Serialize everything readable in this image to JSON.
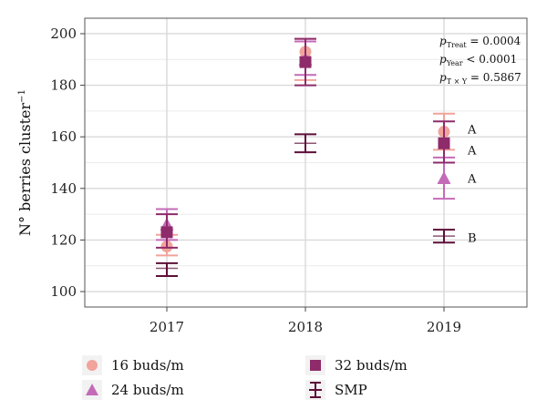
{
  "chart_data": {
    "type": "scatter",
    "ylabel": "N° berries cluster",
    "ylabel_superscript": "−1",
    "xlabel": "",
    "categories": [
      "2017",
      "2018",
      "2019"
    ],
    "ylim": [
      94,
      206
    ],
    "yticks": [
      100,
      120,
      140,
      160,
      180,
      200
    ],
    "grid": true,
    "legend_position": "bottom",
    "series": [
      {
        "name": "16 buds/m",
        "marker": "circle",
        "color": "#f0a49a",
        "values": [
          117.5,
          193,
          162
        ],
        "err_low": [
          114,
          182,
          155
        ],
        "err_high": [
          122,
          198,
          169
        ]
      },
      {
        "name": "24 buds/m",
        "marker": "triangle",
        "color": "#c46bb8",
        "values": [
          126,
          190,
          144
        ],
        "err_low": [
          120,
          184,
          136
        ],
        "err_high": [
          132,
          197,
          152
        ]
      },
      {
        "name": "32 buds/m",
        "marker": "square",
        "color": "#8e2b6b",
        "values": [
          123,
          189,
          157.5
        ],
        "err_low": [
          117,
          180,
          150
        ],
        "err_high": [
          130,
          198,
          166
        ]
      },
      {
        "name": "SMP",
        "marker": "plus",
        "color": "#5e0f38",
        "values": [
          109,
          157.5,
          121.5
        ],
        "err_low": [
          106,
          154,
          119
        ],
        "err_high": [
          111,
          161,
          124
        ]
      }
    ],
    "annotations": {
      "p_treat": {
        "p": "p",
        "sub": "Treat",
        "rest": " = 0.0004"
      },
      "p_year": {
        "p": "p",
        "sub": "Year",
        "rest": " < 0.0001"
      },
      "p_txy": {
        "p": "p",
        "sub": "T × Y",
        "rest": " = 0.5867"
      }
    },
    "letters": {
      "year": "2019",
      "items": [
        {
          "text": "A",
          "y": 163
        },
        {
          "text": "A",
          "y": 155
        },
        {
          "text": "A",
          "y": 144
        },
        {
          "text": "B",
          "y": 121
        }
      ]
    }
  }
}
